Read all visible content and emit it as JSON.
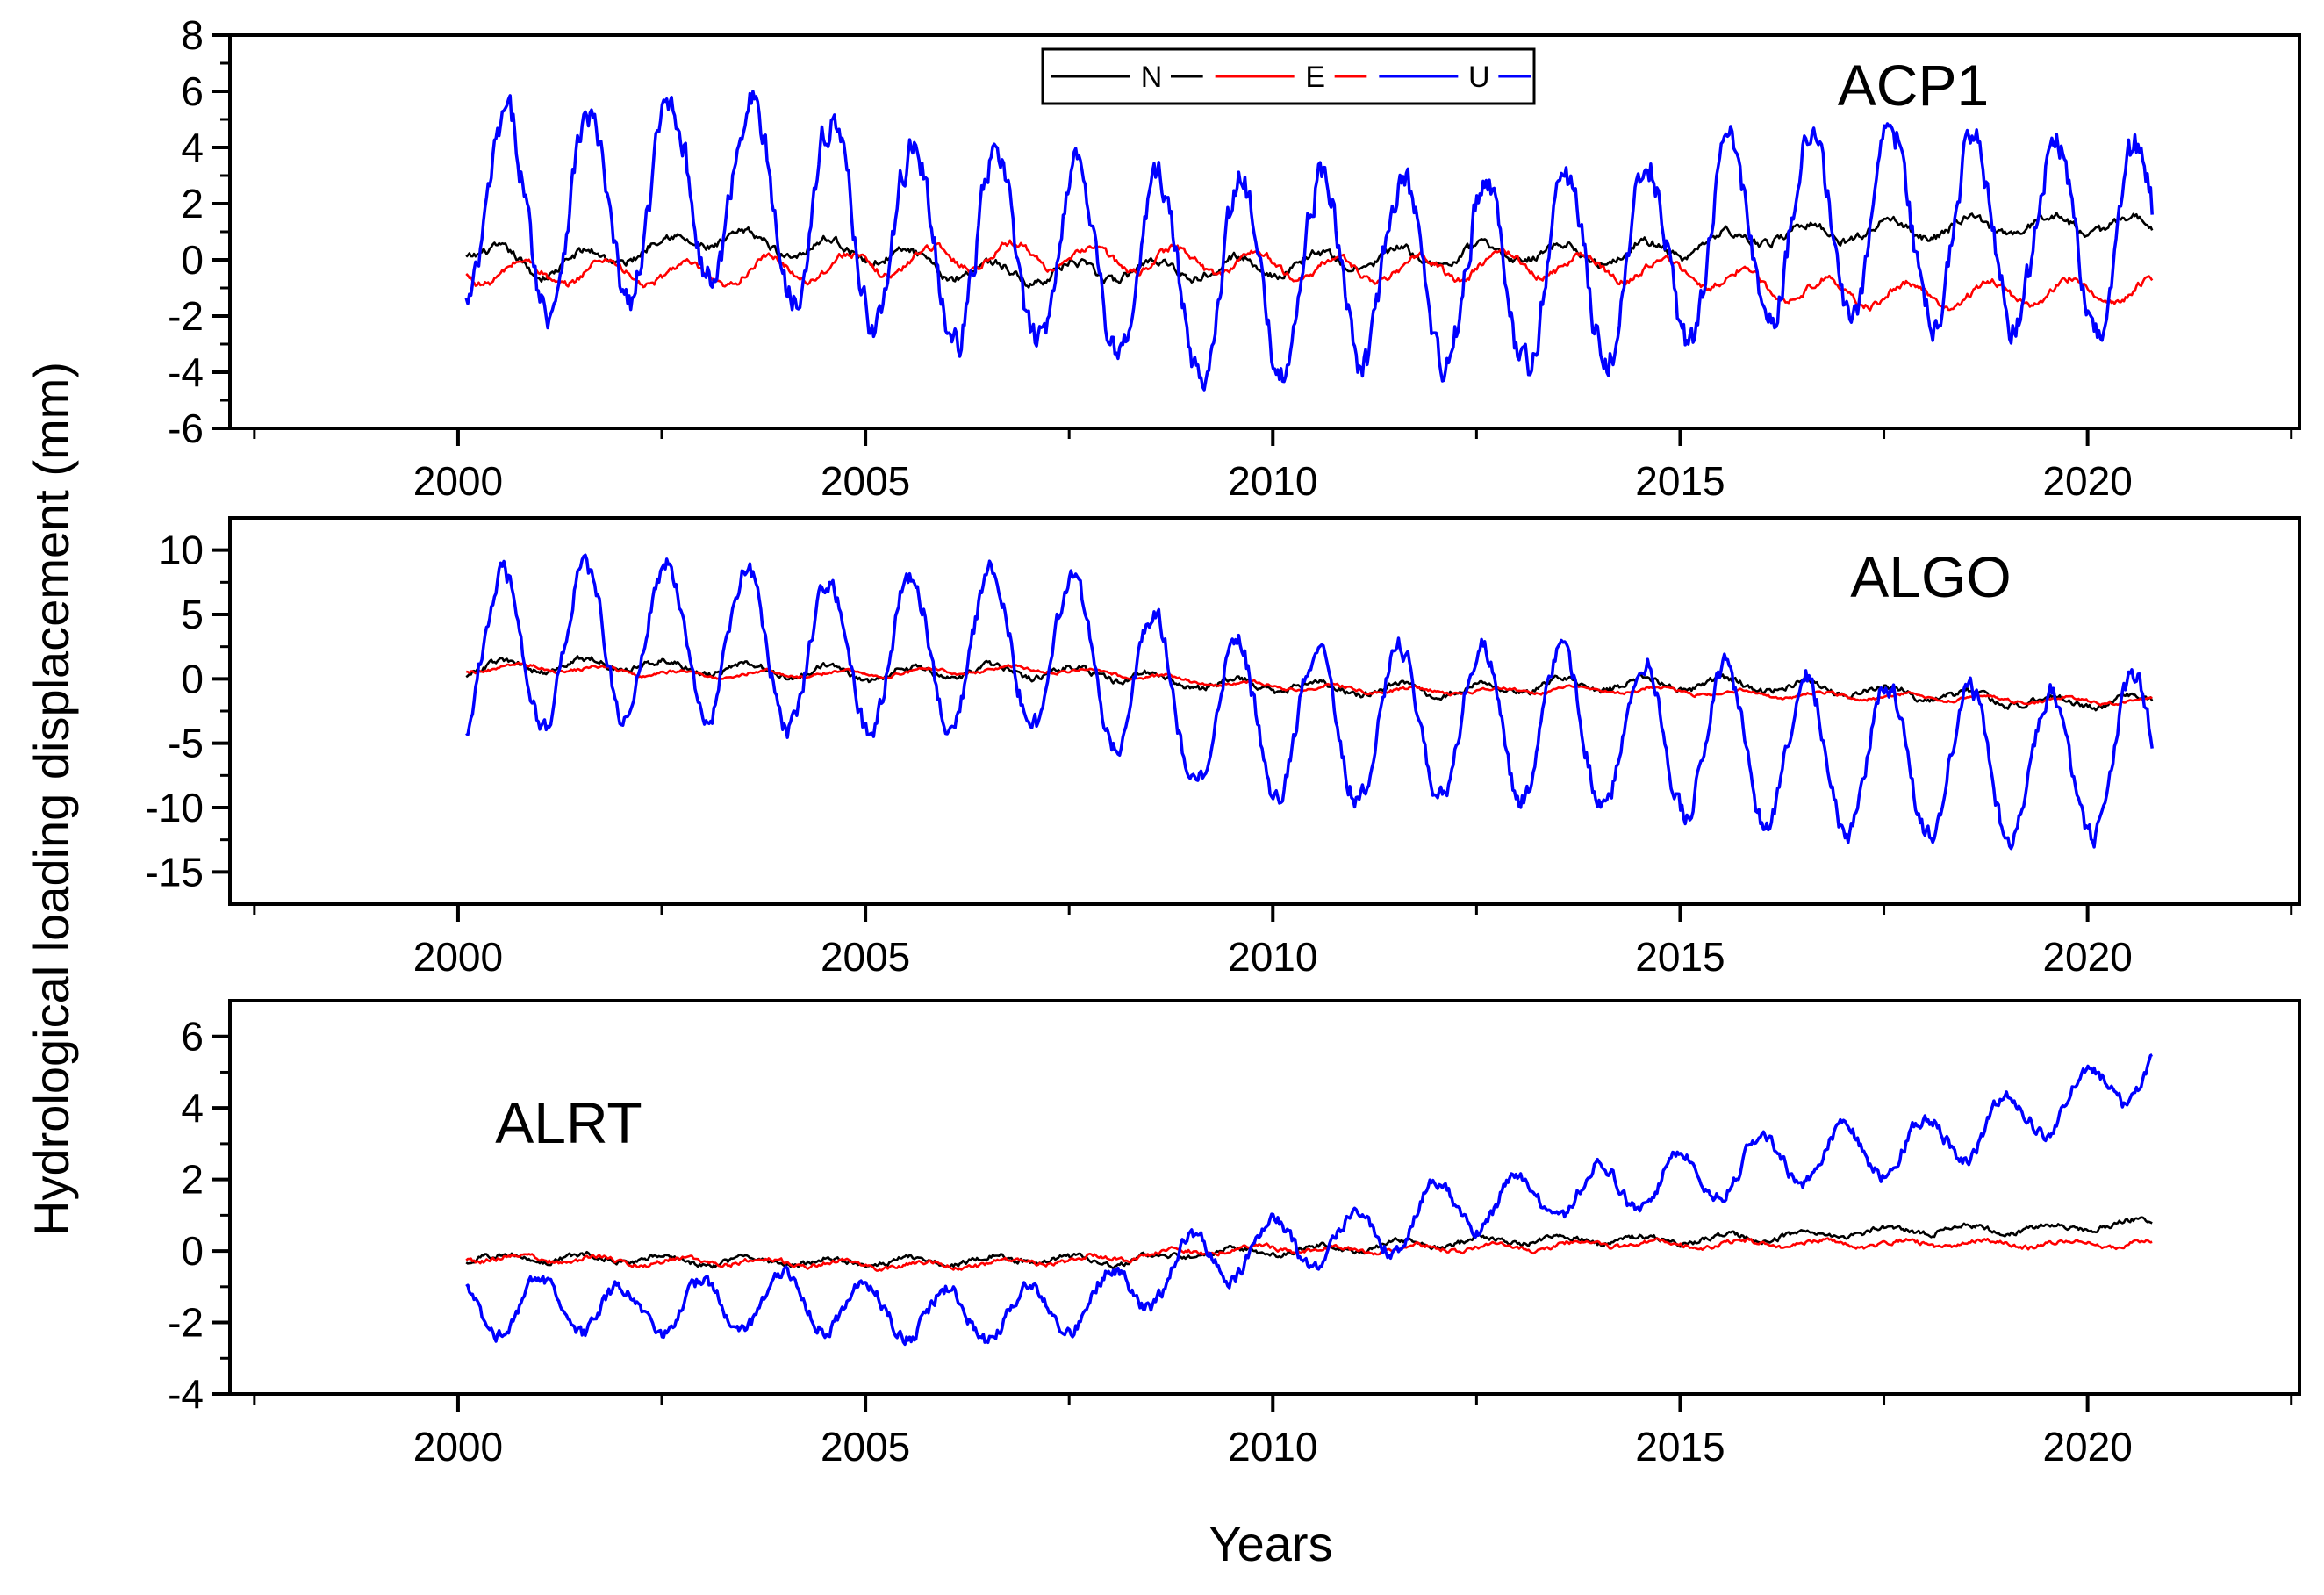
{
  "chart_data": {
    "type": "line",
    "ylabel": "Hydrological loading displacement (mm)",
    "xlabel": "Years",
    "xlim": [
      1997.2,
      2022.6
    ],
    "x_ticks": [
      2000,
      2005,
      2010,
      2015,
      2020
    ],
    "x_tick_labels": [
      "2000",
      "2005",
      "2010",
      "2015",
      "2020"
    ],
    "legend": {
      "placement": "top-center of first panel",
      "entries": [
        {
          "label": "N",
          "color": "#000000"
        },
        {
          "label": "E",
          "color": "#ff0000"
        },
        {
          "label": "U",
          "color": "#0000ff"
        }
      ]
    },
    "panels": [
      {
        "station": "ACP1",
        "ylim": [
          -6,
          8
        ],
        "y_ticks": [
          -6,
          -4,
          -2,
          0,
          2,
          4,
          6,
          8
        ],
        "y_tick_labels": [
          "-6",
          "-4",
          "-2",
          "0",
          "2",
          "4",
          "6",
          "8"
        ],
        "series": [
          {
            "name": "N",
            "color": "#000000",
            "x_start": 2000.1,
            "x_end": 2020.8,
            "anchors": [
              [
                2000.1,
                0.4
              ],
              [
                2001,
                -0.3
              ],
              [
                2002,
                0.2
              ],
              [
                2003,
                0.8
              ],
              [
                2004,
                0.5
              ],
              [
                2005,
                0.3
              ],
              [
                2006,
                -0.3
              ],
              [
                2007,
                -0.5
              ],
              [
                2008,
                -0.4
              ],
              [
                2009,
                -0.3
              ],
              [
                2010,
                -0.2
              ],
              [
                2011,
                0.0
              ],
              [
                2012,
                0.1
              ],
              [
                2013,
                0.3
              ],
              [
                2014,
                0.2
              ],
              [
                2015,
                0.4
              ],
              [
                2016,
                0.9
              ],
              [
                2017,
                1.0
              ],
              [
                2018,
                1.1
              ],
              [
                2019,
                1.2
              ],
              [
                2020,
                1.3
              ],
              [
                2020.8,
                1.2
              ]
            ],
            "seasonal_amp": 0.35,
            "phase": 0.3,
            "noise": 0.12
          },
          {
            "name": "E",
            "color": "#ff0000",
            "x_start": 2000.1,
            "x_end": 2020.8,
            "anchors": [
              [
                2000.1,
                -0.4
              ],
              [
                2001,
                -0.5
              ],
              [
                2002,
                -0.4
              ],
              [
                2003,
                -0.6
              ],
              [
                2004,
                -0.3
              ],
              [
                2005,
                -0.2
              ],
              [
                2006,
                0.1
              ],
              [
                2007,
                0.2
              ],
              [
                2008,
                0.0
              ],
              [
                2009,
                0.0
              ],
              [
                2010,
                -0.2
              ],
              [
                2011,
                -0.4
              ],
              [
                2012,
                -0.3
              ],
              [
                2013,
                -0.1
              ],
              [
                2014,
                -0.3
              ],
              [
                2015,
                -0.4
              ],
              [
                2016,
                -0.9
              ],
              [
                2017,
                -1.2
              ],
              [
                2018,
                -1.3
              ],
              [
                2019,
                -1.2
              ],
              [
                2020,
                -1.1
              ],
              [
                2020.8,
                -1.1
              ]
            ],
            "seasonal_amp": 0.45,
            "phase": 0.55,
            "noise": 0.1
          },
          {
            "name": "U",
            "color": "#0000ff",
            "x_start": 2000.1,
            "x_end": 2020.8,
            "anchors": [
              [
                2000.1,
                1.8
              ],
              [
                2001,
                1.6
              ],
              [
                2002,
                1.8
              ],
              [
                2003,
                2.6
              ],
              [
                2004,
                2.2
              ],
              [
                2005,
                1.2
              ],
              [
                2006,
                0.3
              ],
              [
                2007,
                0.3
              ],
              [
                2008,
                0.0
              ],
              [
                2009,
                -0.8
              ],
              [
                2010,
                -0.6
              ],
              [
                2011,
                -0.3
              ],
              [
                2012,
                -0.6
              ],
              [
                2013,
                -0.6
              ],
              [
                2014,
                -0.3
              ],
              [
                2015,
                0.3
              ],
              [
                2016,
                1.0
              ],
              [
                2017,
                1.4
              ],
              [
                2018,
                1.1
              ],
              [
                2019,
                1.0
              ],
              [
                2020,
                0.8
              ],
              [
                2020.8,
                0.5
              ]
            ],
            "seasonal_amp": 3.4,
            "phase": 0.35,
            "noise": 0.5
          }
        ]
      },
      {
        "station": "ALGO",
        "ylim": [
          -17.5,
          12.5
        ],
        "y_ticks": [
          -15,
          -10,
          -5,
          0,
          5,
          10
        ],
        "y_tick_labels": [
          "-15",
          "-10",
          "-5",
          "0",
          "5",
          "10"
        ],
        "series": [
          {
            "name": "N",
            "color": "#000000",
            "x_start": 2000.1,
            "x_end": 2020.8,
            "anchors": [
              [
                2000.1,
                0.8
              ],
              [
                2001,
                1.0
              ],
              [
                2002,
                1.2
              ],
              [
                2003,
                0.8
              ],
              [
                2004,
                0.6
              ],
              [
                2005,
                0.4
              ],
              [
                2006,
                0.5
              ],
              [
                2007,
                0.6
              ],
              [
                2008,
                0.4
              ],
              [
                2009,
                -0.3
              ],
              [
                2010,
                -0.5
              ],
              [
                2011,
                -0.8
              ],
              [
                2012,
                -0.9
              ],
              [
                2013,
                -0.6
              ],
              [
                2014,
                -0.4
              ],
              [
                2015,
                -0.4
              ],
              [
                2016,
                -0.5
              ],
              [
                2017,
                -0.8
              ],
              [
                2018,
                -1.2
              ],
              [
                2019,
                -1.6
              ],
              [
                2020,
                -1.8
              ],
              [
                2020.8,
                -1.8
              ]
            ],
            "seasonal_amp": 0.5,
            "phase": 0.3,
            "noise": 0.2
          },
          {
            "name": "E",
            "color": "#ff0000",
            "x_start": 2000.1,
            "x_end": 2020.8,
            "anchors": [
              [
                2000.1,
                0.8
              ],
              [
                2001,
                0.9
              ],
              [
                2002,
                0.6
              ],
              [
                2003,
                0.3
              ],
              [
                2004,
                0.4
              ],
              [
                2005,
                0.4
              ],
              [
                2006,
                0.6
              ],
              [
                2007,
                0.8
              ],
              [
                2008,
                0.5
              ],
              [
                2009,
                -0.2
              ],
              [
                2010,
                -0.6
              ],
              [
                2011,
                -0.8
              ],
              [
                2012,
                -1.0
              ],
              [
                2013,
                -0.9
              ],
              [
                2014,
                -0.8
              ],
              [
                2015,
                -1.0
              ],
              [
                2016,
                -1.2
              ],
              [
                2017,
                -1.3
              ],
              [
                2018,
                -1.4
              ],
              [
                2019,
                -1.6
              ],
              [
                2020,
                -1.7
              ],
              [
                2020.8,
                -1.7
              ]
            ],
            "seasonal_amp": 0.25,
            "phase": 0.5,
            "noise": 0.1
          },
          {
            "name": "U",
            "color": "#0000ff",
            "x_start": 2000.1,
            "x_end": 2020.8,
            "anchors": [
              [
                2000.1,
                2.0
              ],
              [
                2001,
                2.2
              ],
              [
                2002,
                3.0
              ],
              [
                2003,
                2.8
              ],
              [
                2004,
                2.2
              ],
              [
                2005,
                1.6
              ],
              [
                2006,
                2.4
              ],
              [
                2007,
                2.2
              ],
              [
                2008,
                1.2
              ],
              [
                2009,
                -2.6
              ],
              [
                2010,
                -3.2
              ],
              [
                2011,
                -3.6
              ],
              [
                2012,
                -3.2
              ],
              [
                2013,
                -3.4
              ],
              [
                2014,
                -4.0
              ],
              [
                2015,
                -4.6
              ],
              [
                2016,
                -5.4
              ],
              [
                2017,
                -6.0
              ],
              [
                2018,
                -6.4
              ],
              [
                2019,
                -6.8
              ],
              [
                2020,
                -6.6
              ],
              [
                2020.8,
                -5.2
              ]
            ],
            "seasonal_amp": 6.0,
            "phase": 0.3,
            "noise": 0.7
          }
        ]
      },
      {
        "station": "ALRT",
        "ylim": [
          -4,
          7
        ],
        "y_ticks": [
          -4,
          -2,
          0,
          2,
          4,
          6
        ],
        "y_tick_labels": [
          "-4",
          "-2",
          "0",
          "2",
          "4",
          "6"
        ],
        "series": [
          {
            "name": "N",
            "color": "#000000",
            "x_start": 2000.1,
            "x_end": 2020.8,
            "anchors": [
              [
                2000.1,
                -0.2
              ],
              [
                2001,
                -0.2
              ],
              [
                2002,
                -0.2
              ],
              [
                2003,
                -0.3
              ],
              [
                2004,
                -0.3
              ],
              [
                2005,
                -0.3
              ],
              [
                2006,
                -0.3
              ],
              [
                2007,
                -0.2
              ],
              [
                2008,
                -0.3
              ],
              [
                2009,
                -0.1
              ],
              [
                2010,
                0.0
              ],
              [
                2011,
                0.1
              ],
              [
                2012,
                0.2
              ],
              [
                2013,
                0.3
              ],
              [
                2014,
                0.3
              ],
              [
                2015,
                0.3
              ],
              [
                2016,
                0.4
              ],
              [
                2017,
                0.5
              ],
              [
                2018,
                0.6
              ],
              [
                2019,
                0.6
              ],
              [
                2020,
                0.7
              ],
              [
                2020.8,
                0.8
              ]
            ],
            "seasonal_amp": 0.12,
            "phase": 0.3,
            "noise": 0.06
          },
          {
            "name": "E",
            "color": "#ff0000",
            "x_start": 2000.1,
            "x_end": 2020.8,
            "anchors": [
              [
                2000.1,
                -0.2
              ],
              [
                2001,
                -0.2
              ],
              [
                2002,
                -0.3
              ],
              [
                2003,
                -0.3
              ],
              [
                2004,
                -0.3
              ],
              [
                2005,
                -0.4
              ],
              [
                2006,
                -0.4
              ],
              [
                2007,
                -0.3
              ],
              [
                2008,
                -0.2
              ],
              [
                2009,
                0.0
              ],
              [
                2010,
                0.1
              ],
              [
                2011,
                0.0
              ],
              [
                2012,
                0.1
              ],
              [
                2013,
                0.1
              ],
              [
                2014,
                0.2
              ],
              [
                2015,
                0.2
              ],
              [
                2016,
                0.2
              ],
              [
                2017,
                0.2
              ],
              [
                2018,
                0.2
              ],
              [
                2019,
                0.2
              ],
              [
                2020,
                0.2
              ],
              [
                2020.8,
                0.2
              ]
            ],
            "seasonal_amp": 0.1,
            "phase": 0.5,
            "noise": 0.05
          },
          {
            "name": "U",
            "color": "#0000ff",
            "x_start": 2000.1,
            "x_end": 2020.8,
            "anchors": [
              [
                2000.1,
                -1.6
              ],
              [
                2001,
                -1.5
              ],
              [
                2002,
                -1.7
              ],
              [
                2003,
                -1.6
              ],
              [
                2004,
                -1.3
              ],
              [
                2005,
                -1.6
              ],
              [
                2006,
                -1.8
              ],
              [
                2007,
                -1.7
              ],
              [
                2008,
                -1.3
              ],
              [
                2009,
                -0.3
              ],
              [
                2010,
                0.2
              ],
              [
                2011,
                0.3
              ],
              [
                2012,
                1.2
              ],
              [
                2013,
                1.4
              ],
              [
                2014,
                1.7
              ],
              [
                2015,
                2.0
              ],
              [
                2016,
                2.5
              ],
              [
                2017,
                2.7
              ],
              [
                2018,
                3.0
              ],
              [
                2019,
                3.6
              ],
              [
                2020,
                4.4
              ],
              [
                2020.8,
                5.2
              ]
            ],
            "seasonal_amp": 0.75,
            "phase": 0.75,
            "noise": 0.15
          }
        ]
      }
    ]
  }
}
